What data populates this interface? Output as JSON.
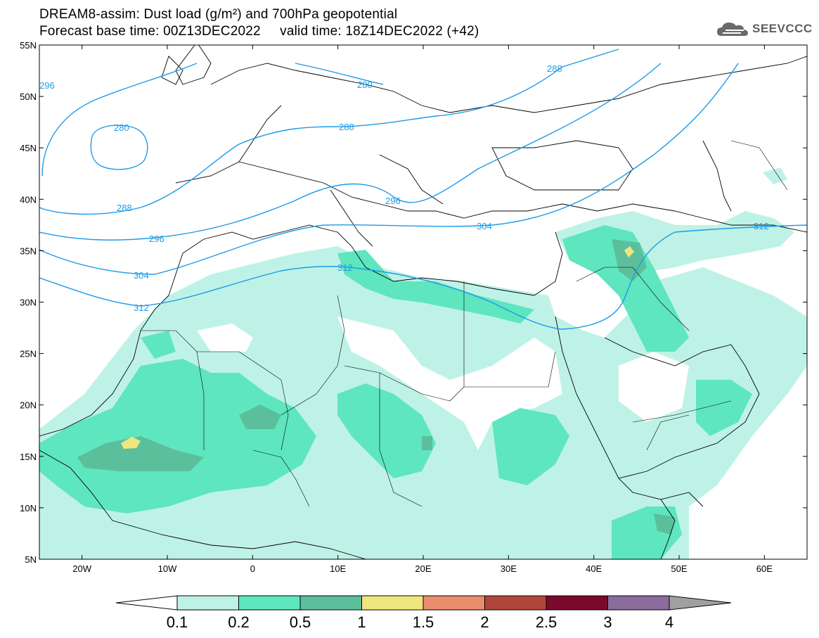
{
  "header": {
    "title_line1": "DREAM8-assim: Dust load (g/m²) and 700hPa geopotential",
    "title_line2": "Forecast base time: 00Z13DEC2022     valid time: 18Z14DEC2022 (+42)"
  },
  "logo": {
    "text": "SEEVCCC",
    "icon": "cloud-logo-icon"
  },
  "map": {
    "lat_ticks": [
      "55N",
      "50N",
      "45N",
      "40N",
      "35N",
      "30N",
      "25N",
      "20N",
      "15N",
      "10N",
      "5N"
    ],
    "lon_ticks": [
      "20W",
      "10W",
      "0",
      "10E",
      "20E",
      "30E",
      "40E",
      "50E",
      "60E"
    ],
    "extent": {
      "lon_min": -25,
      "lon_max": 65,
      "lat_min": 5,
      "lat_max": 55
    },
    "contour_color": "#1e9be6",
    "contour_labels": [
      "296",
      "280",
      "280",
      "288",
      "288",
      "288",
      "296",
      "296",
      "304",
      "304",
      "312",
      "312",
      "312"
    ]
  },
  "colorbar": {
    "levels": [
      "0.1",
      "0.2",
      "0.5",
      "1",
      "1.5",
      "2",
      "2.5",
      "3",
      "4"
    ],
    "colors": [
      "#bff2e6",
      "#5ee6bf",
      "#5cbf9c",
      "#f0e680",
      "#ea8c6e",
      "#b0473c",
      "#7a0a2c",
      "#8a6d9d",
      "#a0a0a0"
    ]
  },
  "chart_data": {
    "type": "heatmap",
    "title": "DREAM8-assim: Dust load (g/m²) and 700hPa geopotential",
    "subtitle": "Forecast base time: 00Z13DEC2022     valid time: 18Z14DEC2022 (+42)",
    "x_ticks": [
      "20W",
      "10W",
      "0",
      "10E",
      "20E",
      "30E",
      "40E",
      "50E",
      "60E"
    ],
    "y_ticks": [
      "55N",
      "50N",
      "45N",
      "40N",
      "35N",
      "30N",
      "25N",
      "20N",
      "15N",
      "10N",
      "5N"
    ],
    "xlim": [
      -25,
      65
    ],
    "ylim": [
      5,
      55
    ],
    "color_levels": [
      0.1,
      0.2,
      0.5,
      1,
      1.5,
      2,
      2.5,
      3,
      4
    ],
    "contour_levels": [
      280,
      288,
      296,
      304,
      312
    ]
  }
}
